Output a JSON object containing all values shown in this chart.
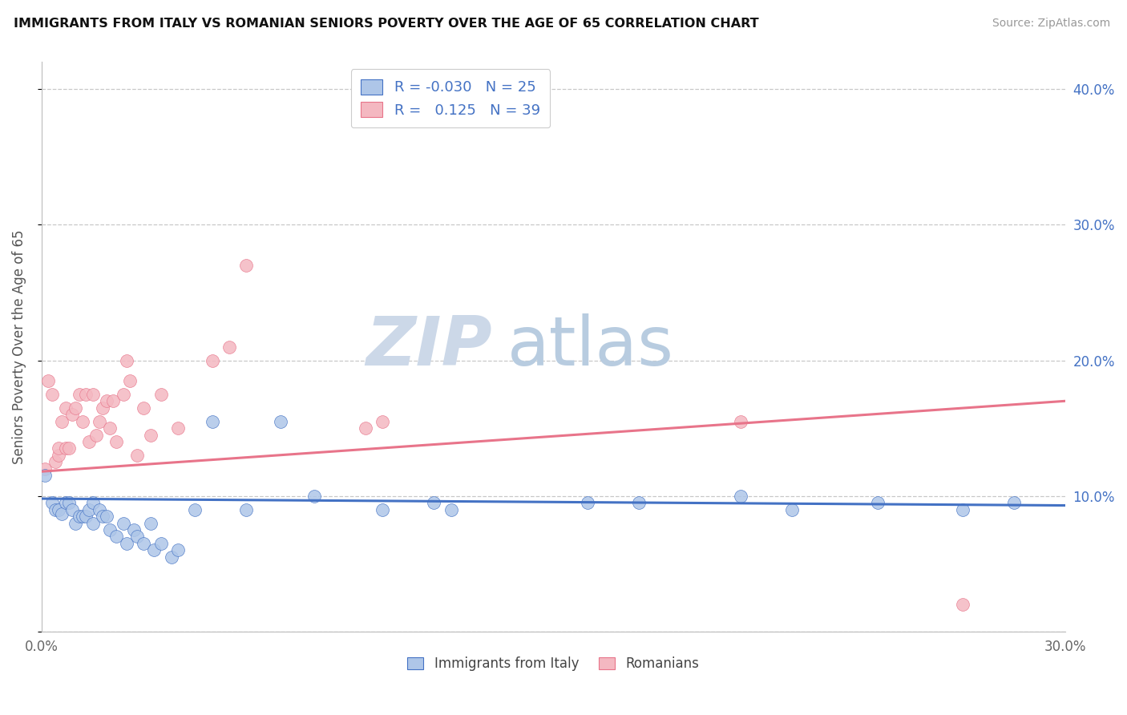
{
  "title": "IMMIGRANTS FROM ITALY VS ROMANIAN SENIORS POVERTY OVER THE AGE OF 65 CORRELATION CHART",
  "source": "Source: ZipAtlas.com",
  "ylabel": "Seniors Poverty Over the Age of 65",
  "xlim": [
    0.0,
    0.3
  ],
  "ylim": [
    0.0,
    0.42
  ],
  "background_color": "#ffffff",
  "grid_color": "#c8c8c8",
  "italy_color": "#aec6e8",
  "italy_line_color": "#4472c4",
  "romania_color": "#f4b8c1",
  "romania_line_color": "#e8748a",
  "watermark_zip": "ZIP",
  "watermark_atlas": "atlas",
  "watermark_color_zip": "#c8d8e8",
  "watermark_color_atlas": "#b8cce0",
  "scatter_size": 130,
  "italy_scatter_x": [
    0.001,
    0.003,
    0.004,
    0.005,
    0.006,
    0.007,
    0.008,
    0.009,
    0.01,
    0.011,
    0.012,
    0.013,
    0.014,
    0.015,
    0.015,
    0.017,
    0.018,
    0.019,
    0.02,
    0.022,
    0.024,
    0.025,
    0.027,
    0.028,
    0.03,
    0.032,
    0.033,
    0.035,
    0.038,
    0.04,
    0.045,
    0.05,
    0.06,
    0.07,
    0.08,
    0.1,
    0.115,
    0.12,
    0.16,
    0.175,
    0.205,
    0.22,
    0.245,
    0.27,
    0.285
  ],
  "italy_scatter_y": [
    0.115,
    0.095,
    0.09,
    0.09,
    0.087,
    0.095,
    0.095,
    0.09,
    0.08,
    0.085,
    0.085,
    0.085,
    0.09,
    0.08,
    0.095,
    0.09,
    0.085,
    0.085,
    0.075,
    0.07,
    0.08,
    0.065,
    0.075,
    0.07,
    0.065,
    0.08,
    0.06,
    0.065,
    0.055,
    0.06,
    0.09,
    0.155,
    0.09,
    0.155,
    0.1,
    0.09,
    0.095,
    0.09,
    0.095,
    0.095,
    0.1,
    0.09,
    0.095,
    0.09,
    0.095
  ],
  "romania_scatter_x": [
    0.001,
    0.002,
    0.003,
    0.004,
    0.005,
    0.005,
    0.006,
    0.007,
    0.007,
    0.008,
    0.009,
    0.01,
    0.011,
    0.012,
    0.013,
    0.014,
    0.015,
    0.016,
    0.017,
    0.018,
    0.019,
    0.02,
    0.021,
    0.022,
    0.024,
    0.025,
    0.026,
    0.028,
    0.03,
    0.032,
    0.035,
    0.04,
    0.05,
    0.055,
    0.06,
    0.095,
    0.1,
    0.205,
    0.27
  ],
  "romania_scatter_y": [
    0.12,
    0.185,
    0.175,
    0.125,
    0.13,
    0.135,
    0.155,
    0.135,
    0.165,
    0.135,
    0.16,
    0.165,
    0.175,
    0.155,
    0.175,
    0.14,
    0.175,
    0.145,
    0.155,
    0.165,
    0.17,
    0.15,
    0.17,
    0.14,
    0.175,
    0.2,
    0.185,
    0.13,
    0.165,
    0.145,
    0.175,
    0.15,
    0.2,
    0.21,
    0.27,
    0.15,
    0.155,
    0.155,
    0.02
  ],
  "italy_trend_x0": 0.0,
  "italy_trend_y0": 0.098,
  "italy_trend_x1": 0.3,
  "italy_trend_y1": 0.093,
  "romania_trend_x0": 0.0,
  "romania_trend_y0": 0.118,
  "romania_trend_x1": 0.3,
  "romania_trend_y1": 0.17
}
